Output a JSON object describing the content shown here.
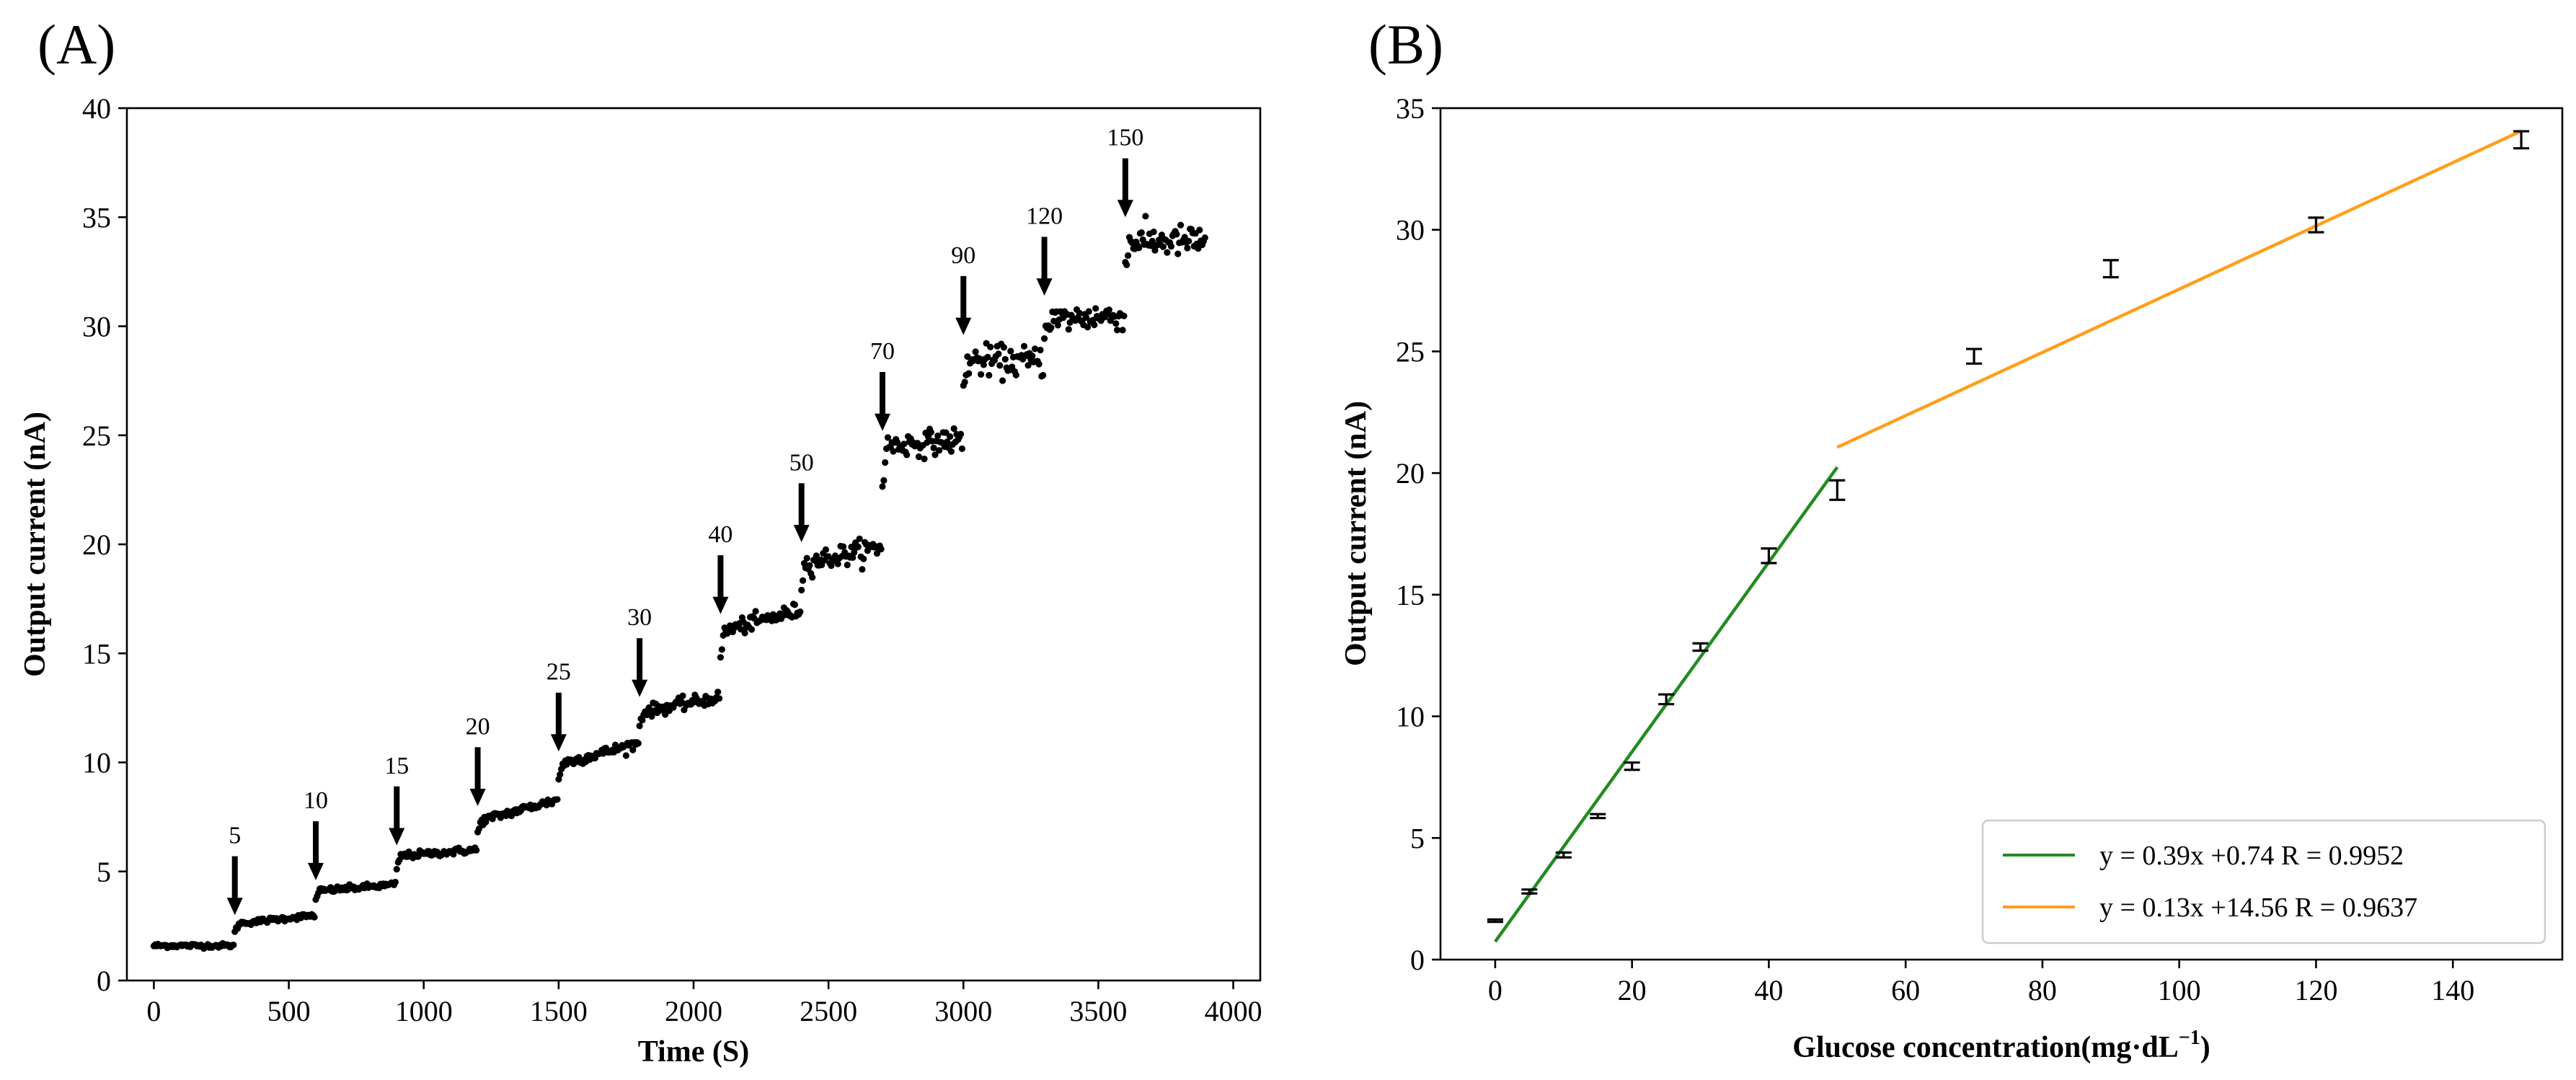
{
  "chart_data": [
    {
      "panel_label": "(A)",
      "type": "scatter",
      "xlabel": "Time (S)",
      "ylabel": "Output current (nA)",
      "xlim": [
        -100,
        4100
      ],
      "ylim": [
        0,
        40
      ],
      "xticks": [
        0,
        500,
        1000,
        1500,
        2000,
        2500,
        3000,
        3500,
        4000
      ],
      "yticks": [
        0,
        5,
        10,
        15,
        20,
        25,
        30,
        35,
        40
      ],
      "marker_color": "#000000",
      "sample_interval_s": 5,
      "steps": [
        {
          "t_start": 0,
          "t_end": 300,
          "level_start": 1.6,
          "level_end": 1.6,
          "noise": 0.05
        },
        {
          "t_start": 300,
          "t_end": 600,
          "level_start": 2.6,
          "level_end": 3.0,
          "noise": 0.06
        },
        {
          "t_start": 600,
          "t_end": 900,
          "level_start": 4.1,
          "level_end": 4.4,
          "noise": 0.07
        },
        {
          "t_start": 900,
          "t_end": 1200,
          "level_start": 5.7,
          "level_end": 6.0,
          "noise": 0.08
        },
        {
          "t_start": 1200,
          "t_end": 1500,
          "level_start": 7.3,
          "level_end": 8.3,
          "noise": 0.1
        },
        {
          "t_start": 1500,
          "t_end": 1800,
          "level_start": 9.9,
          "level_end": 10.9,
          "noise": 0.12
        },
        {
          "t_start": 1800,
          "t_end": 2100,
          "level_start": 12.3,
          "level_end": 13.0,
          "noise": 0.14
        },
        {
          "t_start": 2100,
          "t_end": 2400,
          "level_start": 16.0,
          "level_end": 17.0,
          "noise": 0.18
        },
        {
          "t_start": 2400,
          "t_end": 2700,
          "level_start": 19.1,
          "level_end": 19.9,
          "noise": 0.25
        },
        {
          "t_start": 2700,
          "t_end": 3000,
          "level_start": 24.5,
          "level_end": 24.8,
          "noise": 0.28
        },
        {
          "t_start": 3000,
          "t_end": 3300,
          "level_start": 28.4,
          "level_end": 28.4,
          "noise": 0.35
        },
        {
          "t_start": 3300,
          "t_end": 3600,
          "level_start": 30.3,
          "level_end": 30.5,
          "noise": 0.32
        },
        {
          "t_start": 3600,
          "t_end": 3900,
          "level_start": 33.9,
          "level_end": 33.9,
          "noise": 0.35
        }
      ],
      "annotations": [
        {
          "text": "5",
          "x": 300,
          "y_tip": 3.0,
          "y_tail": 5.7
        },
        {
          "text": "10",
          "x": 600,
          "y_tip": 4.6,
          "y_tail": 7.3
        },
        {
          "text": "15",
          "x": 900,
          "y_tip": 6.2,
          "y_tail": 8.9
        },
        {
          "text": "20",
          "x": 1200,
          "y_tip": 8.0,
          "y_tail": 10.7
        },
        {
          "text": "25",
          "x": 1500,
          "y_tip": 10.5,
          "y_tail": 13.2
        },
        {
          "text": "30",
          "x": 1800,
          "y_tip": 13.0,
          "y_tail": 15.7
        },
        {
          "text": "40",
          "x": 2100,
          "y_tip": 16.8,
          "y_tail": 19.5
        },
        {
          "text": "50",
          "x": 2400,
          "y_tip": 20.1,
          "y_tail": 22.8
        },
        {
          "text": "70",
          "x": 2700,
          "y_tip": 25.2,
          "y_tail": 27.9
        },
        {
          "text": "90",
          "x": 3000,
          "y_tip": 29.6,
          "y_tail": 32.3
        },
        {
          "text": "120",
          "x": 3300,
          "y_tip": 31.4,
          "y_tail": 34.1
        },
        {
          "text": "150",
          "x": 3600,
          "y_tip": 35.0,
          "y_tail": 37.7
        }
      ]
    },
    {
      "panel_label": "(B)",
      "type": "scatter",
      "xlabel": "Glucose concentration(mg·dL",
      "xlabel_superscript": "−1",
      "xlabel_suffix": ")",
      "ylabel": "Output current (nA)",
      "xlim": [
        -8,
        156
      ],
      "ylim": [
        0,
        35
      ],
      "xticks": [
        0,
        20,
        40,
        60,
        80,
        100,
        120,
        140
      ],
      "yticks": [
        0,
        5,
        10,
        15,
        20,
        25,
        30,
        35
      ],
      "points": [
        {
          "x": 0,
          "y": 1.6,
          "err": 0.05
        },
        {
          "x": 5,
          "y": 2.8,
          "err": 0.08
        },
        {
          "x": 10,
          "y": 4.3,
          "err": 0.1
        },
        {
          "x": 15,
          "y": 5.9,
          "err": 0.08
        },
        {
          "x": 20,
          "y": 7.95,
          "err": 0.15
        },
        {
          "x": 25,
          "y": 10.7,
          "err": 0.2
        },
        {
          "x": 30,
          "y": 12.85,
          "err": 0.15
        },
        {
          "x": 40,
          "y": 16.6,
          "err": 0.3
        },
        {
          "x": 50,
          "y": 19.3,
          "err": 0.4
        },
        {
          "x": 70,
          "y": 24.8,
          "err": 0.3
        },
        {
          "x": 90,
          "y": 28.4,
          "err": 0.35
        },
        {
          "x": 120,
          "y": 30.2,
          "err": 0.3
        },
        {
          "x": 150,
          "y": 33.7,
          "err": 0.35
        }
      ],
      "fits": [
        {
          "name": "y = 0.39x +0.74   R = 0.9952",
          "slope": 0.39,
          "intercept": 0.74,
          "x_range": [
            0,
            50
          ],
          "color": "#228b22"
        },
        {
          "name": "y = 0.13x +14.56   R = 0.9637",
          "slope": 0.13,
          "intercept": 14.56,
          "x_range": [
            50,
            150
          ],
          "color": "#ff9f1c"
        }
      ],
      "legend_position": "lower-right"
    }
  ]
}
